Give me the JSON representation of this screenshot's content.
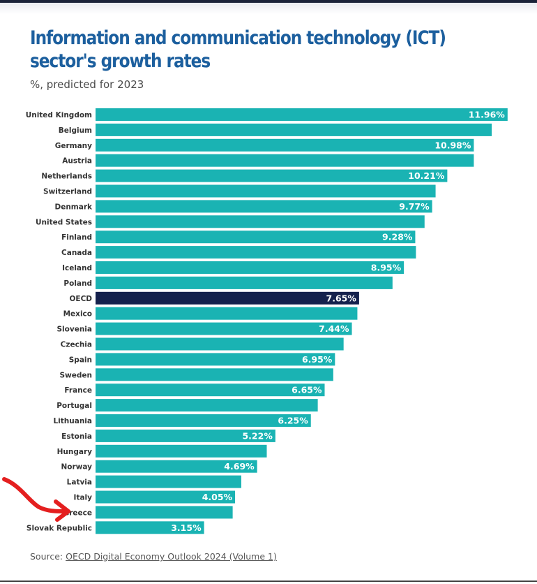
{
  "title": "Information and communication technology (ICT) sector's growth rates",
  "subtitle": "%, predicted for 2023",
  "source_prefix": "Source: ",
  "source_link": "OECD Digital Economy Outlook 2024 (Volume 1)",
  "colors": {
    "bar": "#1ab3b3",
    "highlight": "#15214c",
    "title": "#1c5f9e",
    "annotation": "#e41f1f"
  },
  "chart_data": {
    "type": "bar",
    "orientation": "horizontal",
    "title": "Information and communication technology (ICT) sector's growth rates",
    "subtitle": "%, predicted for 2023",
    "xlim": [
      0,
      12.5
    ],
    "grid": false,
    "legend": "none",
    "highlighted_category": "OECD",
    "categories": [
      "United Kingdom",
      "Belgium",
      "Germany",
      "Austria",
      "Netherlands",
      "Switzerland",
      "Denmark",
      "United States",
      "Finland",
      "Canada",
      "Iceland",
      "Poland",
      "OECD",
      "Mexico",
      "Slovenia",
      "Czechia",
      "Spain",
      "Sweden",
      "France",
      "Portugal",
      "Lithuania",
      "Estonia",
      "Hungary",
      "Norway",
      "Latvia",
      "Italy",
      "Greece",
      "Slovak Republic"
    ],
    "values": [
      11.96,
      11.5,
      10.98,
      10.98,
      10.21,
      9.87,
      9.77,
      9.55,
      9.28,
      9.3,
      8.95,
      8.62,
      7.65,
      7.6,
      7.44,
      7.2,
      6.95,
      6.9,
      6.65,
      6.45,
      6.25,
      5.22,
      4.97,
      4.69,
      4.23,
      4.05,
      3.98,
      3.15
    ],
    "labels": [
      "11.96%",
      "",
      "10.98%",
      "",
      "10.21%",
      "",
      "9.77%",
      "",
      "9.28%",
      "",
      "8.95%",
      "",
      "7.65%",
      "",
      "7.44%",
      "",
      "6.95%",
      "",
      "6.65%",
      "",
      "6.25%",
      "5.22%",
      "",
      "4.69%",
      "",
      "4.05%",
      "",
      "3.15%"
    ]
  },
  "annotation": {
    "type": "arrow",
    "icon": "red-hand-drawn-arrow",
    "points_to": "Greece"
  }
}
